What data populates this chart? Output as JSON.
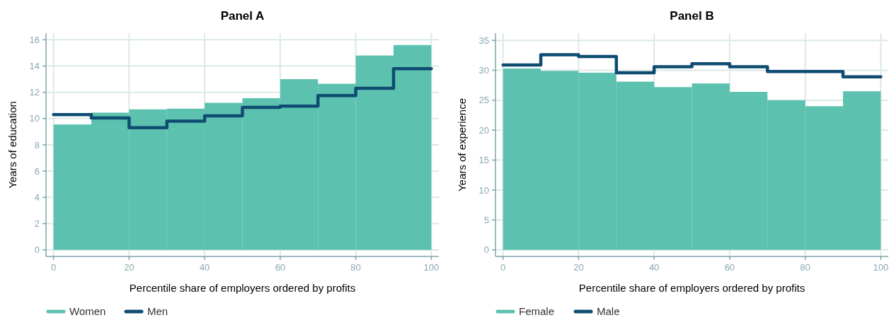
{
  "chart_data": [
    {
      "type": "histogram",
      "title": "Panel A",
      "xlabel": "Percentile share of employers ordered by profits",
      "ylabel": "Years of education",
      "bins": [
        0,
        10,
        20,
        30,
        40,
        50,
        60,
        70,
        80,
        90,
        100
      ],
      "xlim": [
        -2,
        102
      ],
      "ylim": [
        -0.5,
        16.5
      ],
      "xticks": [
        0,
        20,
        40,
        60,
        80,
        100
      ],
      "yticks": [
        0,
        2,
        4,
        6,
        8,
        10,
        12,
        14,
        16
      ],
      "grid": true,
      "legend": "bottom left",
      "series": [
        {
          "name": "Women",
          "color": "#5cc1ae",
          "values": [
            9.55,
            10.45,
            10.7,
            10.75,
            11.2,
            11.55,
            13.0,
            12.65,
            14.8,
            15.6
          ]
        },
        {
          "name": "Men",
          "type": "step",
          "color": "#0f4c71",
          "x": [
            0,
            10,
            20,
            30,
            40,
            50,
            60,
            70,
            80,
            90,
            100
          ],
          "values": [
            10.3,
            10.05,
            9.3,
            9.8,
            10.2,
            10.85,
            10.95,
            11.75,
            12.3,
            13.8,
            13.8
          ]
        }
      ]
    },
    {
      "type": "histogram",
      "title": "Panel B",
      "xlabel": "Percentile share of employers ordered by profits",
      "ylabel": "Years of experience",
      "bins": [
        0,
        10,
        20,
        30,
        40,
        50,
        60,
        70,
        80,
        90,
        100
      ],
      "xlim": [
        -2,
        102
      ],
      "ylim": [
        -1.1,
        36.2
      ],
      "xticks": [
        0,
        20,
        40,
        60,
        80,
        100
      ],
      "yticks": [
        0,
        5,
        10,
        15,
        20,
        25,
        30,
        35
      ],
      "grid": true,
      "legend": "bottom left",
      "series": [
        {
          "name": "Female",
          "color": "#5cc1ae",
          "values": [
            30.3,
            29.9,
            29.6,
            28.1,
            27.2,
            27.8,
            26.4,
            25.0,
            24.0,
            26.5
          ]
        },
        {
          "name": "Male",
          "type": "step",
          "color": "#0f4c71",
          "x": [
            0,
            10,
            20,
            30,
            40,
            50,
            60,
            70,
            80,
            90,
            100
          ],
          "values": [
            30.9,
            32.6,
            32.3,
            29.6,
            30.6,
            31.1,
            30.6,
            29.8,
            29.8,
            28.9,
            28.9
          ]
        }
      ]
    }
  ]
}
